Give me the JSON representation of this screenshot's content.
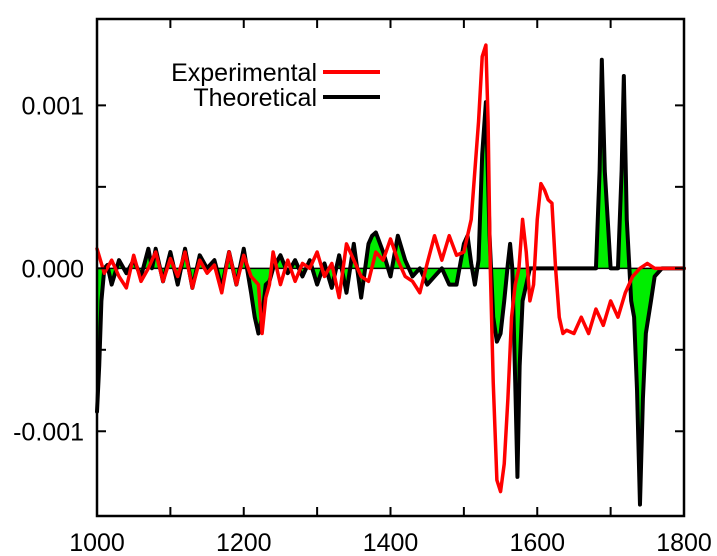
{
  "chart_data": {
    "type": "line",
    "title": "",
    "xlabel": "",
    "ylabel": "",
    "xlim": [
      1000,
      1800
    ],
    "ylim": [
      -0.00152,
      0.00153
    ],
    "grid": false,
    "legend_position": "top-left",
    "x_ticks": [
      1000,
      1200,
      1400,
      1600,
      1800
    ],
    "x_tick_labels": [
      "1000",
      "1200",
      "1400",
      "1600",
      "1800"
    ],
    "y_ticks": [
      0.001,
      0.0,
      -0.001
    ],
    "y_tick_labels": [
      "0.001",
      "0.000",
      "-0.001"
    ],
    "series": [
      {
        "name": "Experimental",
        "color": "#ff0000",
        "x": [
          1000,
          1010,
          1020,
          1030,
          1040,
          1050,
          1060,
          1070,
          1080,
          1090,
          1100,
          1110,
          1120,
          1130,
          1140,
          1150,
          1160,
          1170,
          1180,
          1190,
          1200,
          1210,
          1220,
          1225,
          1230,
          1235,
          1240,
          1250,
          1260,
          1270,
          1280,
          1290,
          1300,
          1310,
          1320,
          1330,
          1340,
          1350,
          1360,
          1370,
          1380,
          1390,
          1400,
          1410,
          1420,
          1430,
          1440,
          1450,
          1460,
          1470,
          1480,
          1490,
          1500,
          1510,
          1520,
          1525,
          1530,
          1533,
          1536,
          1540,
          1545,
          1550,
          1555,
          1560,
          1565,
          1570,
          1575,
          1580,
          1585,
          1590,
          1595,
          1600,
          1605,
          1610,
          1615,
          1620,
          1625,
          1630,
          1635,
          1640,
          1650,
          1660,
          1670,
          1680,
          1690,
          1700,
          1710,
          1720,
          1730,
          1740,
          1750,
          1760,
          1770,
          1780,
          1790,
          1800
        ],
        "y": [
          0.00012,
          -3e-05,
          5e-05,
          -5e-05,
          -0.00012,
          8e-05,
          -8e-05,
          0.0,
          0.0001,
          -8e-05,
          6e-05,
          -5e-05,
          0.0001,
          -0.00012,
          5e-05,
          -3e-05,
          2e-05,
          -0.00015,
          0.0001,
          -0.0001,
          8e-05,
          -5e-05,
          -0.0001,
          -0.0004,
          -0.00018,
          -0.0001,
          0.0001,
          -0.0001,
          5e-05,
          -8e-05,
          3e-05,
          0.0,
          0.0001,
          -5e-05,
          3e-05,
          -0.00018,
          0.00015,
          5e-05,
          -5e-05,
          -8e-05,
          0.0001,
          5e-05,
          0.00018,
          5e-05,
          -5e-05,
          -8e-05,
          -0.00015,
          3e-05,
          0.0002,
          5e-05,
          0.0002,
          8e-05,
          0.0001,
          0.0003,
          0.0009,
          0.0013,
          0.00137,
          0.0009,
          0.0,
          -0.0007,
          -0.0013,
          -0.00137,
          -0.0012,
          -0.0008,
          -0.0003,
          -0.0001,
          0.0,
          0.0003,
          0.0001,
          -0.0002,
          -0.0001,
          0.0003,
          0.00052,
          0.00048,
          0.00042,
          0.0004,
          0.0,
          -0.0003,
          -0.0004,
          -0.00038,
          -0.0004,
          -0.0003,
          -0.0004,
          -0.00025,
          -0.00035,
          -0.0002,
          -0.0003,
          -0.00015,
          -5e-05,
          0.0,
          3e-05,
          0.0,
          0.0,
          0.0,
          0.0,
          0.0
        ]
      },
      {
        "name": "Theoretical",
        "color": "#000000",
        "x": [
          1000,
          1003,
          1006,
          1010,
          1014,
          1020,
          1030,
          1040,
          1050,
          1060,
          1070,
          1075,
          1080,
          1090,
          1100,
          1110,
          1120,
          1130,
          1140,
          1150,
          1160,
          1170,
          1180,
          1190,
          1200,
          1210,
          1215,
          1220,
          1225,
          1230,
          1235,
          1240,
          1250,
          1260,
          1270,
          1280,
          1290,
          1300,
          1310,
          1320,
          1330,
          1340,
          1345,
          1350,
          1360,
          1370,
          1375,
          1380,
          1390,
          1400,
          1410,
          1420,
          1430,
          1440,
          1450,
          1460,
          1470,
          1480,
          1490,
          1500,
          1505,
          1510,
          1515,
          1520,
          1525,
          1530,
          1535,
          1540,
          1545,
          1550,
          1555,
          1560,
          1563,
          1566,
          1570,
          1573,
          1576,
          1580,
          1590,
          1600,
          1610,
          1620,
          1630,
          1640,
          1650,
          1660,
          1670,
          1675,
          1680,
          1685,
          1688,
          1692,
          1700,
          1705,
          1710,
          1715,
          1718,
          1722,
          1728,
          1732,
          1736,
          1740,
          1744,
          1748,
          1755,
          1760,
          1770,
          1780,
          1790,
          1800
        ],
        "y": [
          -0.00088,
          -0.0006,
          -0.0002,
          0.0,
          2e-05,
          -0.0001,
          5e-05,
          -3e-05,
          5e-05,
          -5e-05,
          0.00012,
          0.0,
          0.00012,
          -8e-05,
          0.0001,
          -0.0001,
          0.00012,
          -0.00012,
          8e-05,
          0.0,
          5e-05,
          -0.00012,
          0.0001,
          -0.0001,
          0.00012,
          -0.00015,
          -0.0003,
          -0.0004,
          -0.0003,
          -0.0001,
          -8e-05,
          0.0,
          8e-05,
          -3e-05,
          5e-05,
          -5e-05,
          5e-05,
          -0.0001,
          3e-05,
          -0.00012,
          8e-05,
          -0.00015,
          0.0,
          0.00015,
          -0.00018,
          0.00015,
          0.0002,
          0.00022,
          0.0001,
          -5e-05,
          0.0002,
          5e-05,
          -5e-05,
          0.0,
          -0.0001,
          -5e-05,
          0.0,
          -0.0001,
          -0.0001,
          0.00015,
          0.0002,
          3e-05,
          -0.0001,
          5e-05,
          0.0007,
          0.00102,
          0.0002,
          -0.0003,
          -0.00045,
          -0.0004,
          -0.0002,
          3e-05,
          0.00015,
          0.0,
          -0.0007,
          -0.00128,
          -0.0006,
          -0.0002,
          0.0,
          0.0,
          0.0,
          0.0,
          0.0,
          0.0,
          0.0,
          0.0,
          0.0,
          0.0,
          0.0,
          0.0006,
          0.00128,
          0.0006,
          0.0,
          0.0,
          0.0,
          0.0006,
          0.00118,
          0.0003,
          -0.0002,
          -0.0003,
          -0.00075,
          -0.00145,
          -0.0008,
          -0.0004,
          -0.0002,
          -5e-05,
          0.0,
          0.0,
          0.0,
          0.0
        ]
      }
    ]
  }
}
